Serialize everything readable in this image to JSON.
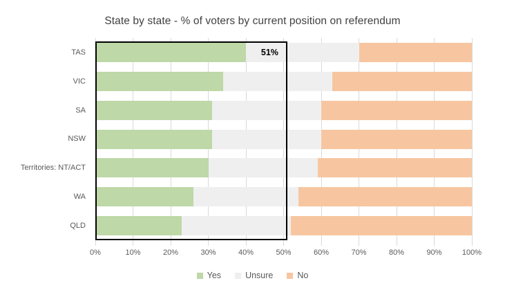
{
  "title": "State by state - % of voters by current position on referendum",
  "chart_data": {
    "type": "bar",
    "orientation": "horizontal",
    "stacked": true,
    "title": "State by state - % of voters by current position on referendum",
    "categories": [
      "TAS",
      "VIC",
      "SA",
      "NSW",
      "Territories: NT/ACT",
      "WA",
      "QLD"
    ],
    "series": [
      {
        "name": "Yes",
        "color": "#BED8A8",
        "values": [
          40,
          34,
          31,
          31,
          30,
          26,
          23
        ]
      },
      {
        "name": "Unsure",
        "color": "#EFEFEF",
        "values": [
          30,
          29,
          29,
          29,
          29,
          28,
          29
        ]
      },
      {
        "name": "No",
        "color": "#F7C6A0",
        "values": [
          30,
          37,
          40,
          40,
          41,
          46,
          48
        ]
      }
    ],
    "xlim": [
      0,
      100
    ],
    "x_tick_labels": [
      "0%",
      "10%",
      "20%",
      "30%",
      "40%",
      "50%",
      "60%",
      "70%",
      "80%",
      "90%",
      "100%"
    ],
    "grid": true,
    "gridline_color": "#D9D9D9",
    "legend_position": "bottom",
    "annotation": {
      "label": "51%",
      "value": 51,
      "box_color": "#000000",
      "applies_to_row": "TAS"
    },
    "text_color": "#595959",
    "title_color": "#404040"
  }
}
